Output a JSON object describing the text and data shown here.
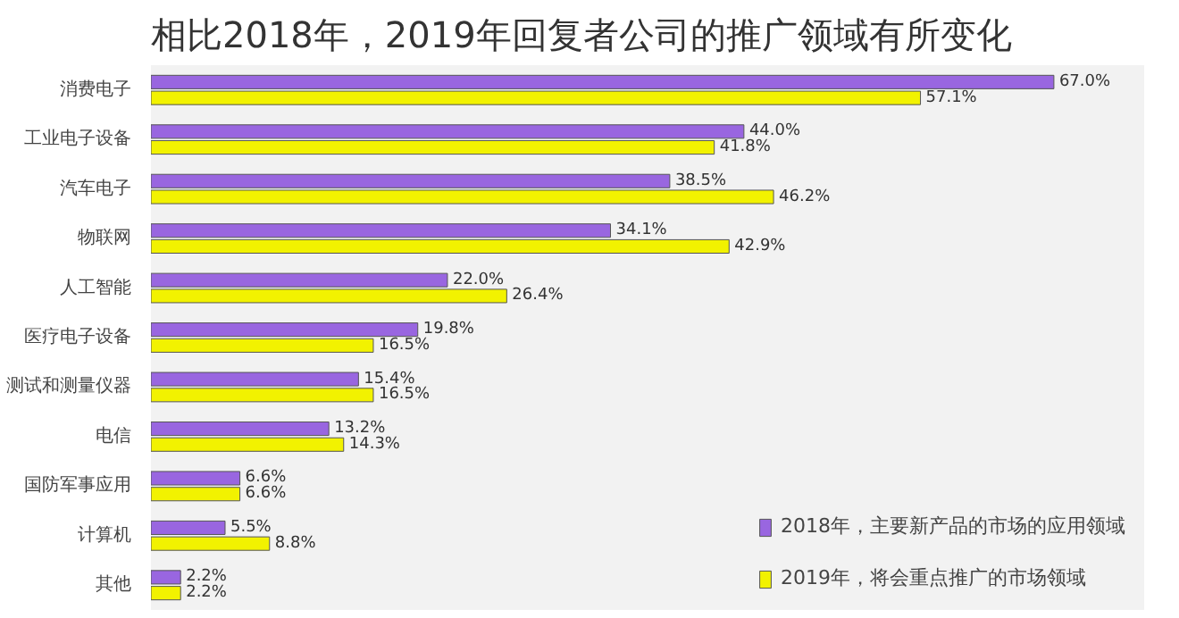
{
  "chart_data": {
    "type": "bar",
    "orientation": "horizontal",
    "title": "相比2018年，2019年回复者公司的推广领域有所变化",
    "categories": [
      "消费电子",
      "工业电子设备",
      "汽车电子",
      "物联网",
      "人工智能",
      "医疗电子设备",
      "测试和测量仪器",
      "电信",
      "国防军事应用",
      "计算机",
      "其他"
    ],
    "series": [
      {
        "name": "2018年，主要新产品的市场的应用领域",
        "color": "#9966e0",
        "values": [
          67.0,
          44.0,
          38.5,
          34.1,
          22.0,
          19.8,
          15.4,
          13.2,
          6.6,
          5.5,
          2.2
        ],
        "value_labels": [
          "67.0%",
          "44.0%",
          "38.5%",
          "34.1%",
          "22.0%",
          "19.8%",
          "15.4%",
          "13.2%",
          "6.6%",
          "5.5%",
          "2.2%"
        ]
      },
      {
        "name": "2019年，将会重点推广的市场领域",
        "color": "#f2f200",
        "values": [
          57.1,
          41.8,
          46.2,
          42.9,
          26.4,
          16.5,
          16.5,
          14.3,
          6.6,
          8.8,
          2.2
        ],
        "value_labels": [
          "57.1%",
          "41.8%",
          "46.2%",
          "42.9%",
          "26.4%",
          "16.5%",
          "16.5%",
          "14.3%",
          "6.6%",
          "8.8%",
          "2.2%"
        ]
      }
    ],
    "legend": "bottom right",
    "grid": false
  }
}
